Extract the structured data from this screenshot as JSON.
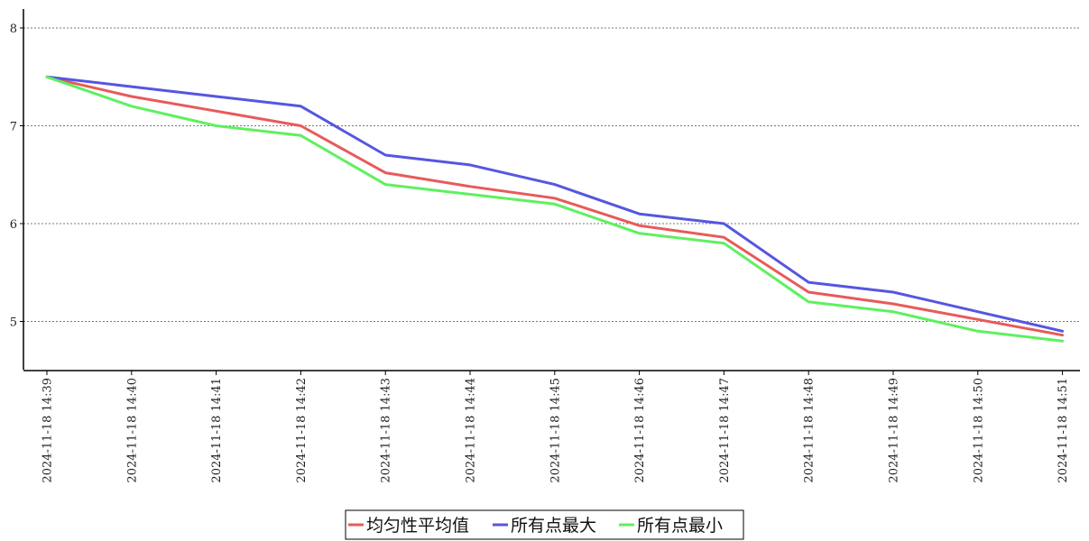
{
  "chart_data": {
    "type": "line",
    "title": "",
    "xlabel": "",
    "ylabel": "",
    "categories": [
      "2024-11-18  14:39",
      "2024-11-18  14:40",
      "2024-11-18  14:41",
      "2024-11-18  14:42",
      "2024-11-18  14:43",
      "2024-11-18  14:44",
      "2024-11-18  14:45",
      "2024-11-18  14:46",
      "2024-11-18  14:47",
      "2024-11-18  14:48",
      "2024-11-18  14:49",
      "2024-11-18  14:50",
      "2024-11-18  14:51"
    ],
    "ylim": [
      4.5,
      8.2
    ],
    "yticks": [
      5,
      6,
      7,
      8
    ],
    "grid": "horizontal dotted",
    "legend_position": "bottom-center",
    "series": [
      {
        "name": "均匀性平均值",
        "color": "#e85a5a",
        "values": [
          7.5,
          7.3,
          7.15,
          7.0,
          6.52,
          6.38,
          6.26,
          5.98,
          5.86,
          5.3,
          5.18,
          5.02,
          4.86
        ]
      },
      {
        "name": "所有点最大",
        "color": "#5656e0",
        "values": [
          7.5,
          7.4,
          7.3,
          7.2,
          6.7,
          6.6,
          6.4,
          6.1,
          6.0,
          5.4,
          5.3,
          5.1,
          4.9
        ]
      },
      {
        "name": "所有点最小",
        "color": "#5ff05f",
        "values": [
          7.5,
          7.2,
          7.0,
          6.9,
          6.4,
          6.3,
          6.2,
          5.9,
          5.8,
          5.2,
          5.1,
          4.9,
          4.8
        ]
      }
    ]
  }
}
